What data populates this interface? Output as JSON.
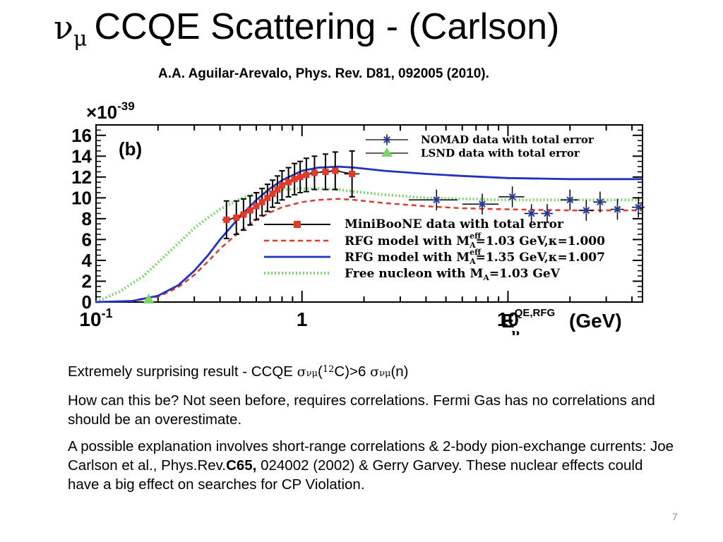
{
  "slide": {
    "title_symbol": "ν",
    "title_subscript": "μ",
    "title_text": "CCQE Scattering - (Carlson)",
    "citation": "A.A. Aguilar-Arevalo, Phys. Rev. D81, 092005 (2010).",
    "page_number": "7"
  },
  "bullets": {
    "b1_prefix": "Extremely surprising result - CCQE ",
    "b1_sigma": "σ",
    "b1_sub": "νμ",
    "b1_paren_open": "(",
    "b1_iso": "12",
    "b1_mid": "C)>6 ",
    "b1_sigma2": "σ",
    "b1_sub2": "νμ",
    "b1_paren2": "(",
    "b1_end": "n)",
    "b2": "How can this be? Not seen before, requires correlations. Fermi Gas has no correlations and should be an overestimate.",
    "b3_pre": "A possible explanation involves short-range correlations & 2-body pion-exchange currents: Joe Carlson et al., Phys.Rev.",
    "b3_bold": "C65,",
    "b3_post": " 024002 (2002) & Gerry Garvey. These nuclear effects could have a big effect on searches for CP Violation."
  },
  "chart_data": {
    "type": "line",
    "panel_label": "(b)",
    "y_multiplier": "×10",
    "y_multiplier_exp": "-39",
    "x_scale": "log",
    "xlim": [
      0.1,
      45
    ],
    "ylim": [
      0,
      17
    ],
    "x_tick_labels": [
      {
        "v": 0.1,
        "base": "10",
        "exp": "-1"
      },
      {
        "v": 1,
        "base": "1",
        "exp": ""
      },
      {
        "v": 10,
        "base": "10",
        "exp": ""
      }
    ],
    "y_ticks": [
      0,
      2,
      4,
      6,
      8,
      10,
      12,
      14,
      16
    ],
    "x_label": {
      "base": "E",
      "sup": "QE,RFG",
      "sub": "ν",
      "unit": "(GeV)"
    },
    "colors": {
      "miniboone": "#e23a2a",
      "rfg103": "#e23a2a",
      "rfg135": "#2233bb",
      "free": "#7dd36a",
      "nomad": "#2b3a8c",
      "lsnd": "#7dd36a"
    },
    "legend_top": [
      {
        "id": "nomad",
        "text": "NOMAD data with total error"
      },
      {
        "id": "lsnd",
        "text": "LSND data with total error"
      }
    ],
    "legend_bottom": [
      {
        "id": "miniboone",
        "text": "MiniBooNE data with total error"
      },
      {
        "id": "rfg103",
        "text_a": "RFG model with M",
        "sup": "eff",
        "sub": "A",
        "text_b": "=1.03 GeV,",
        "kappa": "κ",
        "text_c": "=1.000"
      },
      {
        "id": "rfg135",
        "text_a": "RFG model with M",
        "sup": "eff",
        "sub": "A",
        "text_b": "=1.35 GeV,",
        "kappa": "κ",
        "text_c": "=1.007"
      },
      {
        "id": "free",
        "text_a": "Free nucleon with M",
        "sup": "",
        "sub": "A",
        "text_b": "=1.03 GeV",
        "kappa": "",
        "text_c": ""
      }
    ],
    "series": [
      {
        "name": "RFG model with M_A^eff=1.03 GeV, κ=1.000",
        "id": "rfg103",
        "x": [
          0.1,
          0.15,
          0.2,
          0.25,
          0.3,
          0.35,
          0.4,
          0.5,
          0.6,
          0.7,
          0.8,
          1.0,
          1.2,
          1.5,
          1.8,
          2.5,
          4,
          6,
          10,
          20,
          45
        ],
        "y": [
          0,
          0.1,
          0.5,
          1.4,
          2.6,
          3.9,
          5.1,
          6.8,
          7.9,
          8.6,
          9.1,
          9.6,
          9.8,
          9.9,
          9.8,
          9.5,
          9.2,
          9.0,
          8.9,
          8.8,
          8.8
        ]
      },
      {
        "name": "RFG model with M_A^eff=1.35 GeV, κ=1.007",
        "id": "rfg135",
        "x": [
          0.1,
          0.15,
          0.2,
          0.25,
          0.3,
          0.35,
          0.4,
          0.5,
          0.6,
          0.7,
          0.8,
          1.0,
          1.2,
          1.5,
          1.8,
          2.5,
          4,
          6,
          10,
          20,
          45
        ],
        "y": [
          0,
          0.1,
          0.6,
          1.6,
          3.0,
          4.5,
          6.0,
          8.2,
          9.8,
          10.9,
          11.7,
          12.6,
          12.9,
          13.0,
          12.9,
          12.6,
          12.3,
          12.1,
          11.9,
          11.8,
          11.8
        ]
      },
      {
        "name": "Free nucleon with M_A=1.03 GeV",
        "id": "free",
        "x": [
          0.1,
          0.13,
          0.17,
          0.2,
          0.25,
          0.3,
          0.35,
          0.4,
          0.5,
          0.6,
          0.7,
          0.8,
          1.0,
          1.2,
          1.5,
          1.8,
          2.5,
          4,
          6,
          10,
          20,
          45
        ],
        "y": [
          0,
          1.0,
          2.5,
          3.8,
          5.6,
          7.1,
          8.1,
          8.9,
          9.9,
          10.4,
          10.7,
          10.8,
          10.9,
          10.9,
          10.8,
          10.6,
          10.3,
          10.0,
          9.9,
          9.8,
          9.8,
          9.8
        ]
      },
      {
        "name": "MiniBooNE data with total error",
        "id": "miniboone",
        "x": [
          0.43,
          0.48,
          0.52,
          0.56,
          0.6,
          0.64,
          0.68,
          0.72,
          0.76,
          0.8,
          0.86,
          0.92,
          0.98,
          1.05,
          1.15,
          1.3,
          1.45,
          1.75
        ],
        "y": [
          7.9,
          8.1,
          8.4,
          8.8,
          9.2,
          9.6,
          10.0,
          10.4,
          10.8,
          11.2,
          11.5,
          11.8,
          12.0,
          12.2,
          12.4,
          12.5,
          12.6,
          12.3
        ],
        "err": [
          1.8,
          1.6,
          1.5,
          1.4,
          1.3,
          1.3,
          1.3,
          1.3,
          1.3,
          1.4,
          1.4,
          1.5,
          1.5,
          1.6,
          1.6,
          1.7,
          1.8,
          2.2
        ],
        "xerr": [
          0.02,
          0.02,
          0.02,
          0.02,
          0.02,
          0.02,
          0.02,
          0.02,
          0.02,
          0.02,
          0.03,
          0.03,
          0.03,
          0.03,
          0.05,
          0.07,
          0.07,
          0.15
        ]
      },
      {
        "name": "NOMAD data with total error",
        "id": "nomad",
        "x": [
          4.5,
          7.5,
          10.5,
          13,
          15.5,
          20,
          24,
          28,
          34,
          43
        ],
        "y": [
          9.8,
          9.4,
          10.1,
          8.5,
          8.5,
          9.8,
          8.8,
          9.6,
          8.9,
          9.1
        ],
        "err": [
          1.0,
          1.0,
          1.0,
          0.9,
          0.9,
          1.0,
          1.0,
          1.0,
          1.0,
          1.0
        ],
        "xerr": [
          1.2,
          1.5,
          1.5,
          1.0,
          1.0,
          2.0,
          2.0,
          2.0,
          2.5,
          3.0
        ]
      },
      {
        "name": "LSND data with total error",
        "id": "lsnd",
        "x": [
          0.18
        ],
        "y": [
          0
        ],
        "err": [
          0
        ],
        "xerr": [
          0
        ]
      }
    ]
  }
}
